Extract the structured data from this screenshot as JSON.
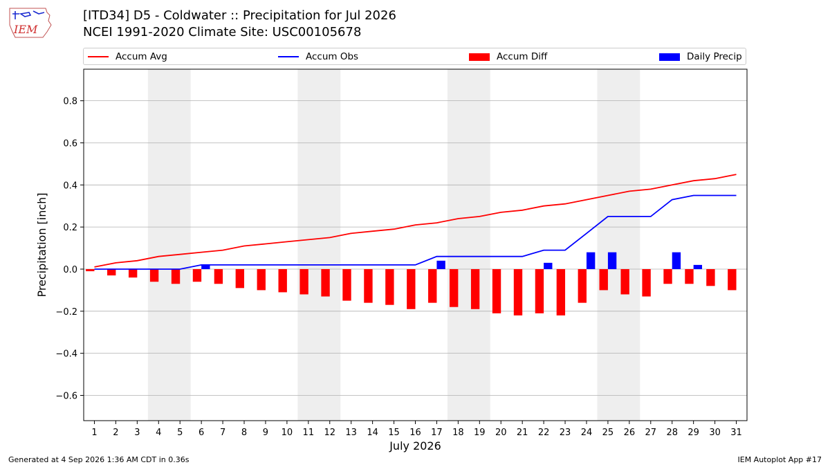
{
  "header": {
    "logo_text": "IEM",
    "title_line1": "[ITD34] D5 - Coldwater  :: Precipitation for Jul 2026",
    "title_line2": "NCEI 1991-2020 Climate Site: USC00105678"
  },
  "legend": {
    "accum_avg": "Accum Avg",
    "accum_obs": "Accum Obs",
    "accum_diff": "Accum Diff",
    "daily_precip": "Daily Precip"
  },
  "footer": {
    "generated": "Generated at 4 Sep 2026 1:36 AM CDT in 0.36s",
    "app": "IEM Autoplot App #17"
  },
  "colors": {
    "accum_avg": "#ff0000",
    "accum_obs": "#0000ff",
    "accum_diff": "#ff0000",
    "daily_precip": "#0000ff",
    "weekend_shade": "#eeeeee",
    "grid": "#b0b0b0"
  },
  "chart_data": {
    "type": "bar",
    "xlabel": "July 2026",
    "ylabel": "Precipitation [inch]",
    "ylim": [
      -0.72,
      0.95
    ],
    "yticks": [
      -0.6,
      -0.4,
      -0.2,
      0.0,
      0.2,
      0.4,
      0.6,
      0.8
    ],
    "ytick_labels": [
      "−0.6",
      "−0.4",
      "−0.2",
      "0.0",
      "0.2",
      "0.4",
      "0.6",
      "0.8"
    ],
    "grid": "horizontal",
    "legend_position": "top",
    "x": [
      1,
      2,
      3,
      4,
      5,
      6,
      7,
      8,
      9,
      10,
      11,
      12,
      13,
      14,
      15,
      16,
      17,
      18,
      19,
      20,
      21,
      22,
      23,
      24,
      25,
      26,
      27,
      28,
      29,
      30,
      31
    ],
    "shaded_days": [
      [
        4,
        5
      ],
      [
        11,
        12
      ],
      [
        18,
        19
      ],
      [
        25,
        26
      ]
    ],
    "series": [
      {
        "name": "Accum Avg",
        "kind": "line",
        "values": [
          0.01,
          0.03,
          0.04,
          0.06,
          0.07,
          0.08,
          0.09,
          0.11,
          0.12,
          0.13,
          0.14,
          0.15,
          0.17,
          0.18,
          0.19,
          0.21,
          0.22,
          0.24,
          0.25,
          0.27,
          0.28,
          0.3,
          0.31,
          0.33,
          0.35,
          0.37,
          0.38,
          0.4,
          0.42,
          0.43,
          0.45
        ]
      },
      {
        "name": "Accum Obs",
        "kind": "line",
        "values": [
          0.0,
          0.0,
          0.0,
          0.0,
          0.0,
          0.02,
          0.02,
          0.02,
          0.02,
          0.02,
          0.02,
          0.02,
          0.02,
          0.02,
          0.02,
          0.02,
          0.06,
          0.06,
          0.06,
          0.06,
          0.06,
          0.09,
          0.09,
          0.17,
          0.25,
          0.25,
          0.25,
          0.33,
          0.35,
          0.35,
          0.35
        ]
      },
      {
        "name": "Accum Diff",
        "kind": "bar",
        "values": [
          -0.01,
          -0.03,
          -0.04,
          -0.06,
          -0.07,
          -0.06,
          -0.07,
          -0.09,
          -0.1,
          -0.11,
          -0.12,
          -0.13,
          -0.15,
          -0.16,
          -0.17,
          -0.19,
          -0.16,
          -0.18,
          -0.19,
          -0.21,
          -0.22,
          -0.21,
          -0.22,
          -0.16,
          -0.1,
          -0.12,
          -0.13,
          -0.07,
          -0.07,
          -0.08,
          -0.1
        ]
      },
      {
        "name": "Daily Precip",
        "kind": "bar",
        "values": [
          0,
          0,
          0,
          0,
          0,
          0.02,
          0,
          0,
          0,
          0,
          0,
          0,
          0,
          0,
          0,
          0,
          0.04,
          0,
          0,
          0,
          0,
          0.03,
          0,
          0.08,
          0.08,
          0,
          0,
          0.08,
          0.02,
          0,
          0
        ]
      }
    ]
  }
}
